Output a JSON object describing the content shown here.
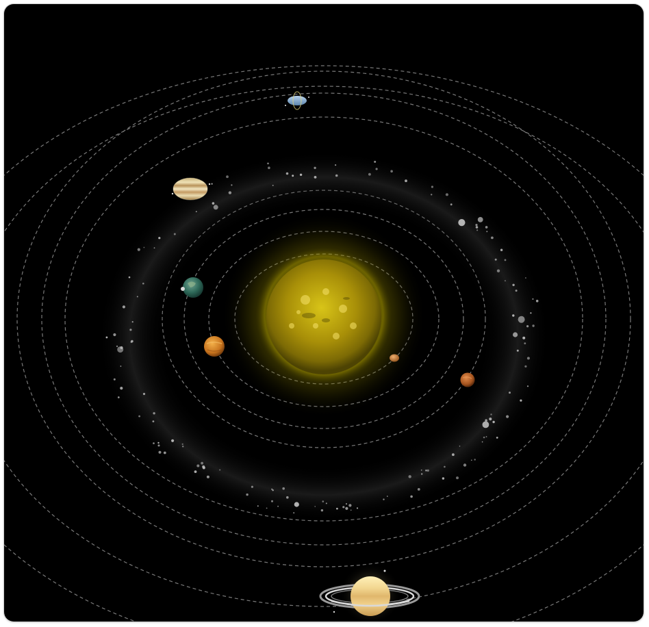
{
  "scene": {
    "background_color": "#000000",
    "orbit_line_color": "#8a8a8a",
    "sun": {
      "icon": "sun-icon",
      "color": "#e8d21a"
    },
    "asteroid_belt": {
      "color": "#bdbdbd"
    },
    "planets": [
      {
        "name": "mercury",
        "icon": "mercury-icon",
        "color": "#c98a4a"
      },
      {
        "name": "venus",
        "icon": "venus-icon",
        "color": "#d9892a"
      },
      {
        "name": "earth",
        "icon": "earth-icon",
        "color": "#3f7a6a"
      },
      {
        "name": "mars",
        "icon": "mars-icon",
        "color": "#b8652e"
      },
      {
        "name": "jupiter",
        "icon": "jupiter-icon",
        "color": "#d8c89a"
      },
      {
        "name": "saturn",
        "icon": "saturn-icon",
        "color": "#e6c98c"
      },
      {
        "name": "uranus",
        "icon": "uranus-icon",
        "color": "#8fb3d4"
      }
    ]
  }
}
